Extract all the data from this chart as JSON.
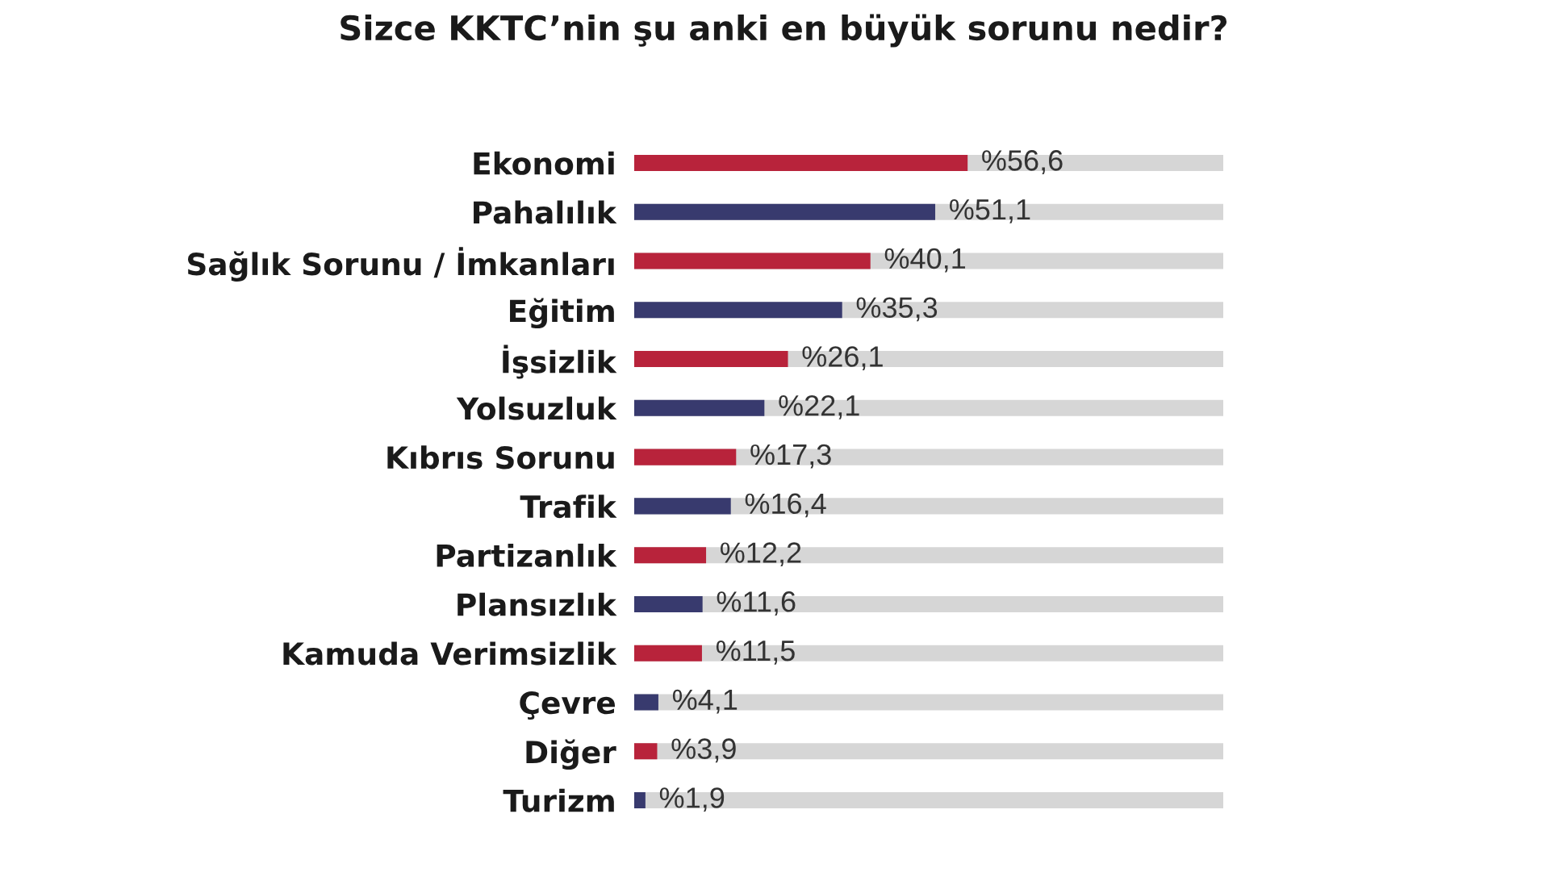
{
  "chart_data": {
    "type": "bar",
    "orientation": "horizontal",
    "title": "Sizce KKTC’nin şu anki en büyük sorunu nedir?",
    "categories": [
      "Ekonomi",
      "Pahalılık",
      "Sağlık Sorunu / İmkanları",
      "Eğitim",
      "İşsizlik",
      "Yolsuzluk",
      "Kıbrıs Sorunu",
      "Trafik",
      "Partizanlık",
      "Plansızlık",
      "Kamuda Verimsizlik",
      "Çevre",
      "Diğer",
      "Turizm"
    ],
    "values": [
      56.6,
      51.1,
      40.1,
      35.3,
      26.1,
      22.1,
      17.3,
      16.4,
      12.2,
      11.6,
      11.5,
      4.1,
      3.9,
      1.9
    ],
    "colors": [
      "#b8233b",
      "#383a6e",
      "#b8233b",
      "#383a6e",
      "#b8233b",
      "#383a6e",
      "#b8233b",
      "#383a6e",
      "#b8233b",
      "#383a6e",
      "#b8233b",
      "#383a6e",
      "#b8233b",
      "#383a6e"
    ],
    "value_labels": [
      "%56,6",
      "%51,1",
      "%40,1",
      "%35,3",
      "%26,1",
      "%22,1",
      "%17,3",
      "%16,4",
      "%12,2",
      "%11,6",
      "%11,5",
      "%4,1",
      "%3,9",
      "%1,9"
    ],
    "xlim": [
      0,
      100
    ],
    "tick_labels": "y"
  }
}
